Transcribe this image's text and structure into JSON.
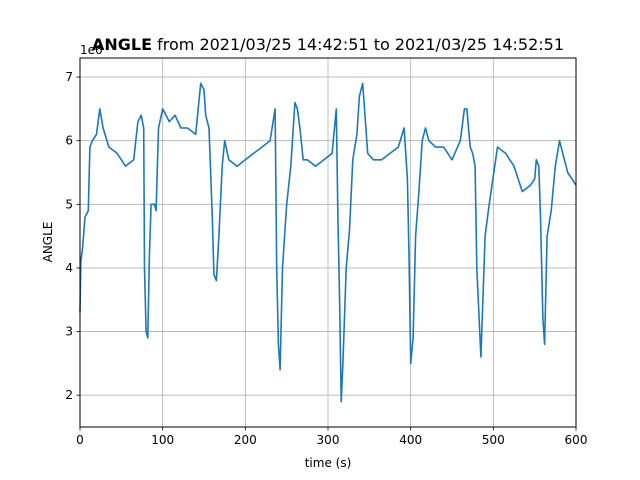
{
  "chart_data": {
    "type": "line",
    "title": {
      "bold": "ANGLE",
      "rest": " from 2021/03/25 14:42:51 to 2021/03/25 14:52:51"
    },
    "xlabel": "time (s)",
    "ylabel": "ANGLE",
    "offset_text": "1e6",
    "xlim": [
      0,
      600
    ],
    "ylim": [
      1.5,
      7.3
    ],
    "xticks": [
      0,
      100,
      200,
      300,
      400,
      500,
      600
    ],
    "yticks": [
      2,
      3,
      4,
      5,
      6,
      7
    ],
    "grid": true,
    "series": [
      {
        "color": "#1f77b4",
        "x": [
          0,
          1,
          3,
          6,
          10,
          12,
          15,
          20,
          24,
          28,
          35,
          45,
          55,
          65,
          70,
          74,
          77,
          78,
          80,
          82,
          84,
          86,
          90,
          92,
          95,
          100,
          108,
          115,
          122,
          130,
          140,
          146,
          150,
          152,
          156,
          160,
          162,
          165,
          168,
          172,
          175,
          180,
          190,
          200,
          210,
          220,
          230,
          236,
          238,
          240,
          242,
          245,
          250,
          255,
          260,
          263,
          266,
          270,
          275,
          285,
          295,
          305,
          310,
          312,
          314,
          316,
          318,
          322,
          326,
          330,
          335,
          338,
          342,
          348,
          355,
          365,
          375,
          385,
          392,
          396,
          398,
          400,
          403,
          406,
          410,
          414,
          418,
          422,
          430,
          440,
          450,
          460,
          465,
          468,
          470,
          472,
          475,
          478,
          480,
          485,
          490,
          495,
          505,
          515,
          525,
          535,
          545,
          550,
          552,
          555,
          557,
          560,
          562,
          565,
          570,
          575,
          580,
          590,
          600
        ],
        "y": [
          3.3,
          4.1,
          4.3,
          4.8,
          4.9,
          5.9,
          6.0,
          6.1,
          6.5,
          6.2,
          5.9,
          5.8,
          5.6,
          5.7,
          6.3,
          6.4,
          6.2,
          4.0,
          3.0,
          2.9,
          4.2,
          5.0,
          5.0,
          4.9,
          6.2,
          6.5,
          6.3,
          6.4,
          6.2,
          6.2,
          6.1,
          6.9,
          6.8,
          6.4,
          6.2,
          4.8,
          3.9,
          3.8,
          4.5,
          5.6,
          6.0,
          5.7,
          5.6,
          5.7,
          5.8,
          5.9,
          6.0,
          6.5,
          4.0,
          2.8,
          2.4,
          4.0,
          5.0,
          5.6,
          6.6,
          6.5,
          6.2,
          5.7,
          5.7,
          5.6,
          5.7,
          5.8,
          6.5,
          4.8,
          3.5,
          1.9,
          2.5,
          4.0,
          4.6,
          5.7,
          6.1,
          6.7,
          6.9,
          5.8,
          5.7,
          5.7,
          5.8,
          5.9,
          6.2,
          5.4,
          4.2,
          2.5,
          2.9,
          4.5,
          5.2,
          6.0,
          6.2,
          6.0,
          5.9,
          5.9,
          5.7,
          6.0,
          6.5,
          6.5,
          6.2,
          5.9,
          5.8,
          5.6,
          4.0,
          2.6,
          4.5,
          5.0,
          5.9,
          5.8,
          5.6,
          5.2,
          5.3,
          5.4,
          5.7,
          5.6,
          4.8,
          3.2,
          2.8,
          4.5,
          4.9,
          5.6,
          6.0,
          5.5,
          5.3
        ]
      }
    ]
  }
}
